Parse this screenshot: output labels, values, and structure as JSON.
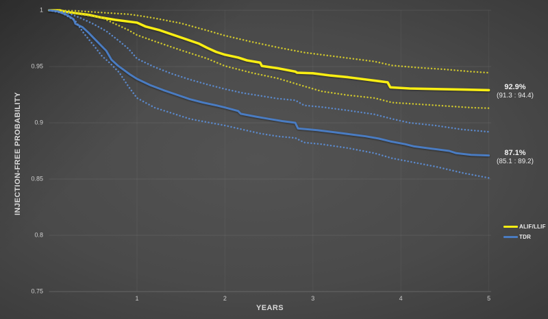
{
  "chart_data": {
    "type": "line",
    "title": "",
    "xlabel": "YEARS",
    "ylabel": "INJECTION-FREE  PROBABILITY",
    "xlim": [
      0,
      5
    ],
    "ylim": [
      0.75,
      1.0
    ],
    "x_ticks": [
      "1",
      "2",
      "3",
      "4",
      "5"
    ],
    "x_tick_values": [
      1,
      2,
      3,
      4,
      5
    ],
    "y_ticks": [
      "1",
      "0.95",
      "0.9",
      "0.85",
      "0.8",
      "0.75"
    ],
    "y_tick_values": [
      1,
      0.95,
      0.9,
      0.85,
      0.8,
      0.75
    ],
    "grid": true,
    "legend_position": "right",
    "series": [
      {
        "name": "ALIF/LLIF",
        "style": "solid",
        "color": "#f9ee13",
        "width": 3.6,
        "points": [
          [
            0,
            1.0
          ],
          [
            0.12,
            1.0
          ],
          [
            0.2,
            0.9985
          ],
          [
            0.3,
            0.9975
          ],
          [
            0.45,
            0.996
          ],
          [
            0.6,
            0.9935
          ],
          [
            0.75,
            0.9915
          ],
          [
            0.9,
            0.99
          ],
          [
            1.0,
            0.989
          ],
          [
            1.1,
            0.9855
          ],
          [
            1.25,
            0.9825
          ],
          [
            1.4,
            0.9785
          ],
          [
            1.55,
            0.9745
          ],
          [
            1.7,
            0.9705
          ],
          [
            1.8,
            0.9665
          ],
          [
            1.9,
            0.963
          ],
          [
            2.0,
            0.9605
          ],
          [
            2.15,
            0.958
          ],
          [
            2.25,
            0.9555
          ],
          [
            2.4,
            0.9535
          ],
          [
            2.42,
            0.9505
          ],
          [
            2.6,
            0.9485
          ],
          [
            2.8,
            0.9455
          ],
          [
            2.82,
            0.9445
          ],
          [
            3.0,
            0.944
          ],
          [
            3.2,
            0.942
          ],
          [
            3.4,
            0.9405
          ],
          [
            3.6,
            0.9385
          ],
          [
            3.75,
            0.937
          ],
          [
            3.85,
            0.936
          ],
          [
            3.88,
            0.9315
          ],
          [
            4.1,
            0.9305
          ],
          [
            4.4,
            0.93
          ],
          [
            4.7,
            0.9295
          ],
          [
            5.0,
            0.929
          ]
        ]
      },
      {
        "name": "ALIF/LLIF upper 95% CI",
        "style": "dotted",
        "color": "#cdc52e",
        "width": 2.5,
        "points": [
          [
            0,
            1.0
          ],
          [
            0.3,
            0.9995
          ],
          [
            0.6,
            0.998
          ],
          [
            0.9,
            0.9965
          ],
          [
            1.0,
            0.9955
          ],
          [
            1.2,
            0.993
          ],
          [
            1.5,
            0.9885
          ],
          [
            1.8,
            0.982
          ],
          [
            2.0,
            0.9775
          ],
          [
            2.3,
            0.972
          ],
          [
            2.6,
            0.967
          ],
          [
            2.9,
            0.9625
          ],
          [
            3.1,
            0.9605
          ],
          [
            3.4,
            0.9575
          ],
          [
            3.7,
            0.9545
          ],
          [
            3.9,
            0.951
          ],
          [
            4.2,
            0.949
          ],
          [
            4.5,
            0.9475
          ],
          [
            4.8,
            0.9455
          ],
          [
            5.0,
            0.9445
          ]
        ]
      },
      {
        "name": "ALIF/LLIF lower 95% CI",
        "style": "dotted",
        "color": "#cdc52e",
        "width": 2.5,
        "points": [
          [
            0,
            1.0
          ],
          [
            0.3,
            0.997
          ],
          [
            0.6,
            0.9935
          ],
          [
            0.9,
            0.9825
          ],
          [
            1.0,
            0.978
          ],
          [
            1.2,
            0.9725
          ],
          [
            1.5,
            0.9645
          ],
          [
            1.8,
            0.957
          ],
          [
            2.0,
            0.9505
          ],
          [
            2.3,
            0.9445
          ],
          [
            2.6,
            0.9395
          ],
          [
            2.9,
            0.9325
          ],
          [
            3.1,
            0.928
          ],
          [
            3.4,
            0.9245
          ],
          [
            3.7,
            0.922
          ],
          [
            3.9,
            0.918
          ],
          [
            4.2,
            0.9165
          ],
          [
            4.5,
            0.915
          ],
          [
            4.8,
            0.9135
          ],
          [
            5.0,
            0.913
          ]
        ]
      },
      {
        "name": "TDR",
        "style": "solid",
        "color": "#4a7cc2",
        "width": 3.0,
        "points": [
          [
            0,
            1.0
          ],
          [
            0.1,
            0.999
          ],
          [
            0.2,
            0.996
          ],
          [
            0.28,
            0.992
          ],
          [
            0.3,
            0.988
          ],
          [
            0.38,
            0.985
          ],
          [
            0.45,
            0.98
          ],
          [
            0.5,
            0.976
          ],
          [
            0.55,
            0.972
          ],
          [
            0.6,
            0.968
          ],
          [
            0.65,
            0.964
          ],
          [
            0.71,
            0.956
          ],
          [
            0.78,
            0.951
          ],
          [
            0.85,
            0.947
          ],
          [
            0.92,
            0.943
          ],
          [
            1.0,
            0.939
          ],
          [
            1.15,
            0.9335
          ],
          [
            1.3,
            0.929
          ],
          [
            1.45,
            0.925
          ],
          [
            1.6,
            0.921
          ],
          [
            1.75,
            0.918
          ],
          [
            1.9,
            0.9155
          ],
          [
            2.0,
            0.9136
          ],
          [
            2.15,
            0.9105
          ],
          [
            2.18,
            0.908
          ],
          [
            2.35,
            0.9055
          ],
          [
            2.5,
            0.9035
          ],
          [
            2.65,
            0.9015
          ],
          [
            2.8,
            0.9
          ],
          [
            2.83,
            0.895
          ],
          [
            3.05,
            0.8935
          ],
          [
            3.25,
            0.8915
          ],
          [
            3.45,
            0.8895
          ],
          [
            3.6,
            0.888
          ],
          [
            3.75,
            0.886
          ],
          [
            3.88,
            0.8835
          ],
          [
            4.05,
            0.881
          ],
          [
            4.15,
            0.879
          ],
          [
            4.35,
            0.877
          ],
          [
            4.55,
            0.875
          ],
          [
            4.63,
            0.873
          ],
          [
            4.8,
            0.8715
          ],
          [
            5.0,
            0.871
          ]
        ]
      },
      {
        "name": "TDR upper 95% CI",
        "style": "dotted",
        "color": "#5b88c9",
        "width": 2.5,
        "points": [
          [
            0,
            1.0
          ],
          [
            0.2,
            0.998
          ],
          [
            0.35,
            0.9935
          ],
          [
            0.5,
            0.988
          ],
          [
            0.65,
            0.9815
          ],
          [
            0.8,
            0.9725
          ],
          [
            0.9,
            0.966
          ],
          [
            1.0,
            0.957
          ],
          [
            1.2,
            0.9495
          ],
          [
            1.4,
            0.9435
          ],
          [
            1.6,
            0.9385
          ],
          [
            1.8,
            0.934
          ],
          [
            2.0,
            0.93
          ],
          [
            2.2,
            0.9265
          ],
          [
            2.4,
            0.924
          ],
          [
            2.6,
            0.9215
          ],
          [
            2.8,
            0.92
          ],
          [
            2.9,
            0.9155
          ],
          [
            3.1,
            0.914
          ],
          [
            3.4,
            0.911
          ],
          [
            3.7,
            0.9075
          ],
          [
            3.9,
            0.9035
          ],
          [
            4.1,
            0.9
          ],
          [
            4.4,
            0.8975
          ],
          [
            4.7,
            0.894
          ],
          [
            5.0,
            0.892
          ]
        ]
      },
      {
        "name": "TDR lower 95% CI",
        "style": "dotted",
        "color": "#5b88c9",
        "width": 2.5,
        "points": [
          [
            0,
            1.0
          ],
          [
            0.15,
            0.9975
          ],
          [
            0.3,
            0.9905
          ],
          [
            0.4,
            0.979
          ],
          [
            0.5,
            0.9695
          ],
          [
            0.6,
            0.9595
          ],
          [
            0.7,
            0.9525
          ],
          [
            0.8,
            0.9445
          ],
          [
            0.9,
            0.9325
          ],
          [
            1.0,
            0.922
          ],
          [
            1.2,
            0.9135
          ],
          [
            1.4,
            0.9085
          ],
          [
            1.6,
            0.9035
          ],
          [
            1.8,
            0.9005
          ],
          [
            2.0,
            0.8976
          ],
          [
            2.2,
            0.894
          ],
          [
            2.4,
            0.8905
          ],
          [
            2.6,
            0.888
          ],
          [
            2.8,
            0.8865
          ],
          [
            2.9,
            0.8825
          ],
          [
            3.1,
            0.881
          ],
          [
            3.4,
            0.8775
          ],
          [
            3.7,
            0.873
          ],
          [
            3.9,
            0.8685
          ],
          [
            4.1,
            0.8655
          ],
          [
            4.4,
            0.861
          ],
          [
            4.7,
            0.8555
          ],
          [
            5.0,
            0.851
          ]
        ]
      }
    ],
    "annotations": [
      {
        "value": "92.9%",
        "ci": "(91.3 : 94.4)",
        "series": "ALIF/LLIF"
      },
      {
        "value": "87.1%",
        "ci": "(85.1 : 89.2)",
        "series": "TDR"
      }
    ]
  },
  "legend": {
    "items": [
      {
        "label": "ALIF/LLIF",
        "color": "#f9ee13"
      },
      {
        "label": "TDR",
        "color": "#4a7cc2"
      }
    ]
  }
}
